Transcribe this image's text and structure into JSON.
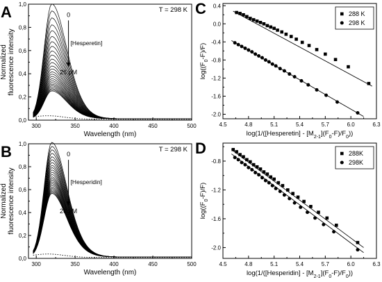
{
  "chart_data": [
    {
      "panel_label": "A",
      "type": "line",
      "annotation": "T = 298 K",
      "arrow_top_label": "0",
      "arrow_mid_label": "[Hesperetin]",
      "arrow_bottom_label": "26 μM",
      "xlabel": "Wavelength (nm)",
      "ylabel_line1": "Normalized",
      "ylabel_line2": "fluorescence intensity",
      "xlim": [
        290,
        500
      ],
      "ylim": [
        0,
        1.0
      ],
      "xticks": [
        "300",
        "350",
        "400",
        "450",
        "500"
      ],
      "yticks": [
        "0,0",
        "0,2",
        "0,4",
        "0,6",
        "0,8",
        "1,0"
      ],
      "grid": false,
      "peak_wavelength": 320,
      "peak_values": [
        0.99,
        0.93,
        0.87,
        0.81,
        0.76,
        0.71,
        0.665,
        0.625,
        0.585,
        0.55,
        0.515,
        0.485,
        0.455,
        0.43,
        0.405,
        0.385,
        0.365,
        0.345,
        0.328,
        0.312,
        0.298,
        0.285,
        0.272,
        0.26,
        0.25,
        0.24
      ],
      "dotted_baseline": 0.03
    },
    {
      "panel_label": "B",
      "type": "line",
      "annotation": "T = 298 K",
      "arrow_top_label": "0",
      "arrow_mid_label": "[Hesperidin]",
      "arrow_bottom_label": "26 μM",
      "xlabel": "Wavelength (nm)",
      "ylabel_line1": "Normalized",
      "ylabel_line2": "fluorescence intensity",
      "xlim": [
        290,
        500
      ],
      "ylim": [
        0,
        1.0
      ],
      "xticks": [
        "300",
        "350",
        "400",
        "450",
        "500"
      ],
      "yticks": [
        "0,0",
        "0,2",
        "0,4",
        "0,6",
        "0,8",
        "1,0"
      ],
      "grid": false,
      "peak_wavelength": 320,
      "peak_values": [
        1.0,
        0.965,
        0.935,
        0.905,
        0.875,
        0.85,
        0.825,
        0.8,
        0.78,
        0.76,
        0.74,
        0.72,
        0.7,
        0.685,
        0.67,
        0.655,
        0.64,
        0.625,
        0.61,
        0.598,
        0.586,
        0.575,
        0.564,
        0.555
      ],
      "dotted_baseline": 0.03
    },
    {
      "panel_label": "C",
      "type": "scatter",
      "xlabel": "log(1/([Hesperetin] - [M2-1](F0-F)/F0))",
      "ylabel": "log((F0-F)/F)",
      "xlim": [
        4.5,
        6.3
      ],
      "ylim": [
        -2.1,
        0.45
      ],
      "xticks": [
        "4.5",
        "4.8",
        "5.1",
        "5.4",
        "5.7",
        "6.0",
        "6.3"
      ],
      "yticks": [
        "-2.0",
        "-1.6",
        "-1.2",
        "-0.8",
        "-0.4",
        "0.0",
        "0.4"
      ],
      "legend_position": "top-right",
      "series": [
        {
          "name": "288 K",
          "marker": "square",
          "fit": [
            [
              4.62,
              0.28
            ],
            [
              6.25,
              -1.38
            ]
          ],
          "x": [
            4.66,
            4.7,
            4.74,
            4.78,
            4.82,
            4.86,
            4.9,
            4.94,
            4.98,
            5.02,
            5.06,
            5.1,
            5.14,
            5.19,
            5.24,
            5.3,
            5.36,
            5.43,
            5.51,
            5.6,
            5.7,
            5.82,
            5.97,
            6.21
          ],
          "y": [
            0.25,
            0.23,
            0.2,
            0.16,
            0.12,
            0.09,
            0.06,
            0.03,
            0.0,
            -0.04,
            -0.07,
            -0.1,
            -0.14,
            -0.18,
            -0.23,
            -0.28,
            -0.34,
            -0.41,
            -0.48,
            -0.57,
            -0.67,
            -0.79,
            -0.95,
            -1.32
          ]
        },
        {
          "name": "298 K",
          "marker": "circle",
          "fit": [
            [
              4.6,
              -0.37
            ],
            [
              6.15,
              -2.05
            ]
          ],
          "x": [
            4.64,
            4.68,
            4.72,
            4.76,
            4.8,
            4.84,
            4.88,
            4.92,
            4.96,
            5.0,
            5.04,
            5.08,
            5.12,
            5.17,
            5.22,
            5.28,
            5.34,
            5.42,
            5.5,
            5.6,
            5.71,
            5.84,
            6.08
          ],
          "y": [
            -0.42,
            -0.46,
            -0.5,
            -0.54,
            -0.58,
            -0.62,
            -0.67,
            -0.71,
            -0.75,
            -0.8,
            -0.84,
            -0.89,
            -0.93,
            -0.99,
            -1.04,
            -1.11,
            -1.17,
            -1.26,
            -1.35,
            -1.46,
            -1.58,
            -1.73,
            -1.97
          ]
        }
      ]
    },
    {
      "panel_label": "D",
      "type": "scatter",
      "xlabel": "log(1/([Hesperidin] - [M2-1](F0-F)/F0))",
      "ylabel": "log((F0-F)/F)",
      "xlim": [
        4.5,
        6.3
      ],
      "ylim": [
        -2.15,
        -0.55
      ],
      "xticks": [
        "4.5",
        "4.8",
        "5.1",
        "5.4",
        "5.7",
        "6.0",
        "6.3"
      ],
      "yticks": [
        "-2.0",
        "-1.6",
        "-1.2",
        "-0.8"
      ],
      "legend_position": "top-right",
      "series": [
        {
          "name": "288K",
          "marker": "square",
          "fit": [
            [
              4.6,
              -0.64
            ],
            [
              6.15,
              -2.0
            ]
          ],
          "x": [
            4.62,
            4.66,
            4.7,
            4.74,
            4.78,
            4.82,
            4.86,
            4.9,
            4.94,
            4.98,
            5.02,
            5.06,
            5.1,
            5.15,
            5.2,
            5.26,
            5.32,
            5.38,
            5.45,
            5.53,
            5.62,
            5.72,
            5.83,
            6.08
          ],
          "y": [
            -0.64,
            -0.67,
            -0.71,
            -0.74,
            -0.78,
            -0.81,
            -0.85,
            -0.88,
            -0.91,
            -0.95,
            -0.98,
            -1.02,
            -1.05,
            -1.1,
            -1.14,
            -1.2,
            -1.25,
            -1.3,
            -1.36,
            -1.43,
            -1.51,
            -1.59,
            -1.69,
            -1.93
          ]
        },
        {
          "name": "298K",
          "marker": "circle",
          "fit": [
            [
              4.6,
              -0.7
            ],
            [
              6.15,
              -2.07
            ]
          ],
          "x": [
            4.64,
            4.68,
            4.72,
            4.76,
            4.8,
            4.84,
            4.88,
            4.92,
            4.96,
            5.0,
            5.04,
            5.08,
            5.12,
            5.17,
            5.22,
            5.28,
            5.34,
            5.41,
            5.49,
            5.58,
            5.68,
            5.8,
            6.08
          ],
          "y": [
            -0.75,
            -0.78,
            -0.82,
            -0.85,
            -0.89,
            -0.92,
            -0.96,
            -0.99,
            -1.03,
            -1.07,
            -1.1,
            -1.14,
            -1.18,
            -1.22,
            -1.27,
            -1.32,
            -1.38,
            -1.44,
            -1.51,
            -1.59,
            -1.68,
            -1.78,
            -2.03
          ]
        }
      ]
    }
  ]
}
